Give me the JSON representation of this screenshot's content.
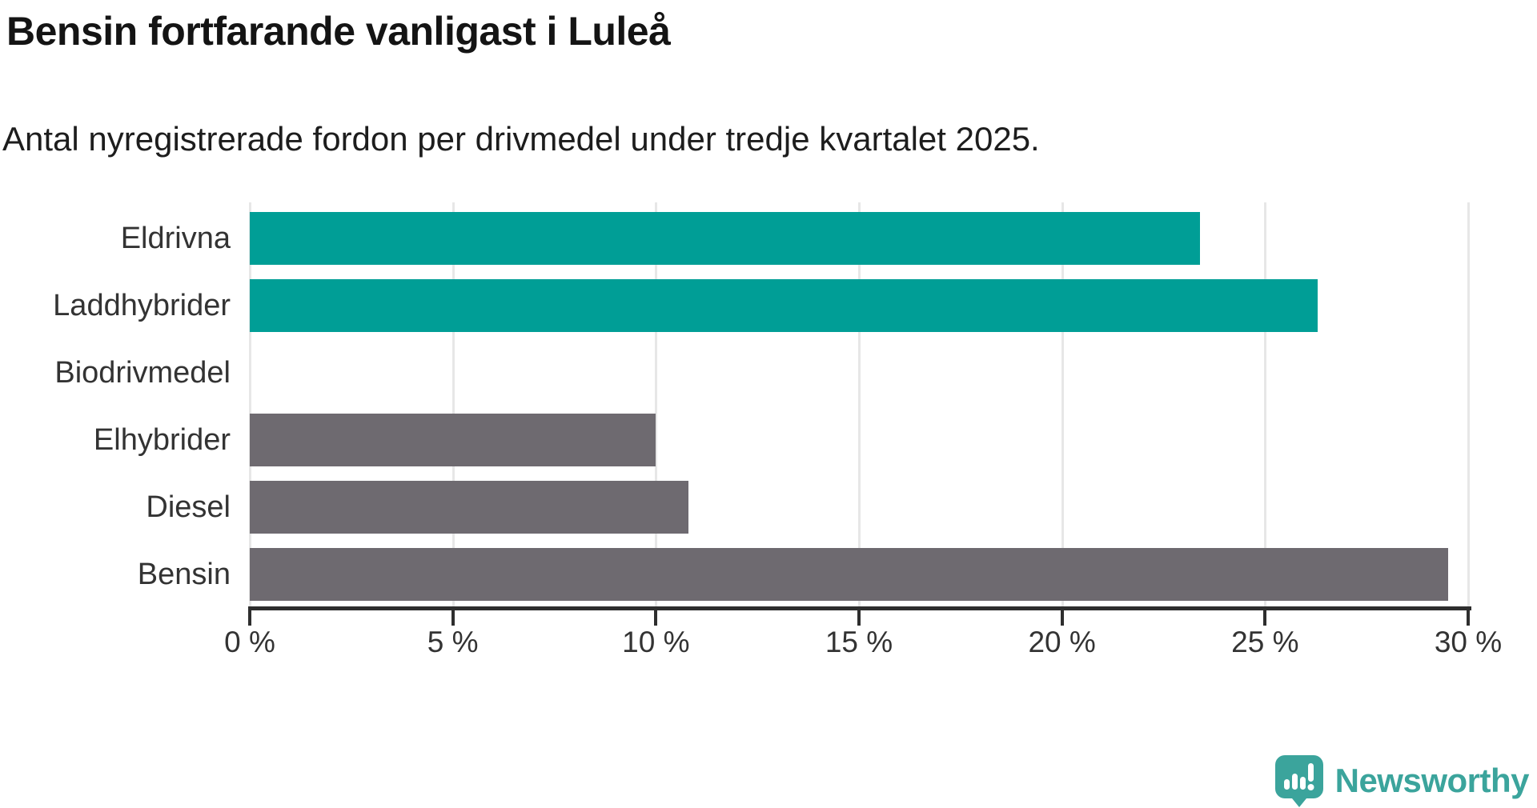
{
  "header": {
    "title": "Bensin fortfarande vanligast i Luleå",
    "subtitle": "Antal nyregistrerade fordon per drivmedel under tredje kvartalet 2025."
  },
  "chart_data": {
    "type": "bar",
    "orientation": "horizontal",
    "title": "Bensin fortfarande vanligast i Luleå",
    "subtitle": "Antal nyregistrerade fordon per drivmedel under tredje kvartalet 2025.",
    "categories": [
      "Eldrivna",
      "Laddhybrider",
      "Biodrivmedel",
      "Elhybrider",
      "Diesel",
      "Bensin"
    ],
    "values": [
      23.4,
      26.3,
      0,
      10.0,
      10.8,
      29.5
    ],
    "unit": "%",
    "bar_colors": [
      "#009e96",
      "#009e96",
      "#6e6a70",
      "#6e6a70",
      "#6e6a70",
      "#6e6a70"
    ],
    "highlight_color": "#009e96",
    "default_color": "#6e6a70",
    "xlim": [
      0,
      30
    ],
    "x_ticks": [
      0,
      5,
      10,
      15,
      20,
      25,
      30
    ],
    "x_tick_labels": [
      "0 %",
      "5 %",
      "10 %",
      "15 %",
      "20 %",
      "25 %",
      "30 %"
    ],
    "grid": true,
    "legend": false
  },
  "footer": {
    "brand": "Newsworthy",
    "brand_color": "#3ba49c"
  }
}
